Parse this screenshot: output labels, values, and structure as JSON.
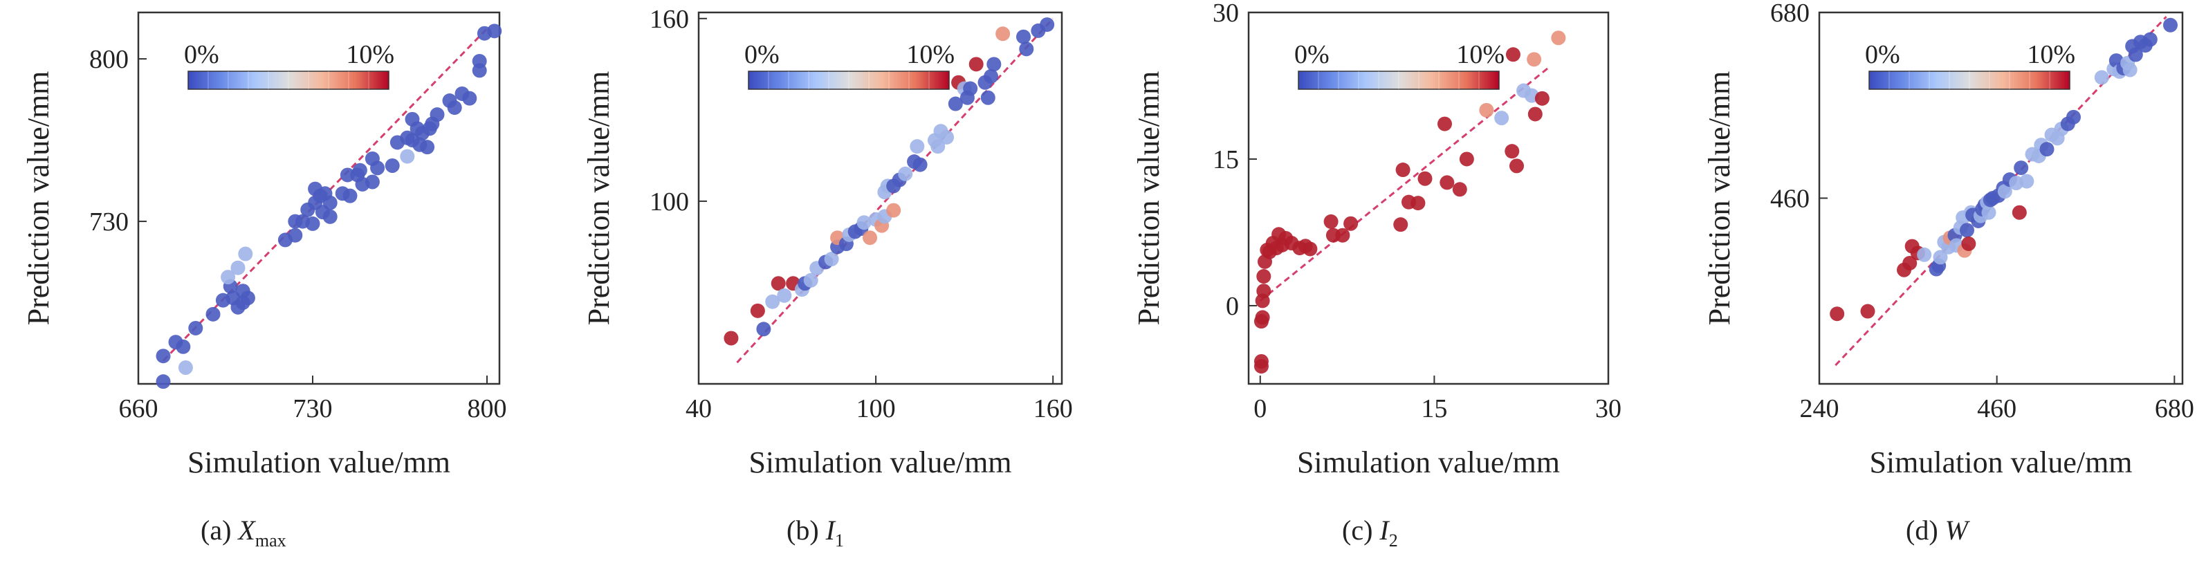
{
  "figure": {
    "colorbar": {
      "min_label": "0%",
      "max_label": "10%",
      "colors": [
        "#3b4cc0",
        "#6a8be8",
        "#aac7fb",
        "#dddddd",
        "#f4b99e",
        "#e8765e",
        "#b40426"
      ]
    },
    "marker_colors": {
      "blue": "#4a5bbf",
      "light": "#9fb4e8",
      "pink": "#e8917b",
      "red": "#b21e2c"
    },
    "reference_line_color": "#d63f6d"
  },
  "chart_data": [
    {
      "type": "scatter",
      "caption": {
        "prefix": "(a) ",
        "symbol": "X",
        "subscript": "max",
        "suffix": ""
      },
      "xlabel": "Simulation value/mm",
      "ylabel": "Prediction value/mm",
      "xlim": [
        660,
        805
      ],
      "ylim": [
        660,
        820
      ],
      "xticks": [
        660,
        730,
        800
      ],
      "yticks": [
        730,
        800
      ],
      "xtick_labels": [
        "660",
        "730",
        "800"
      ],
      "ytick_labels": [
        "730",
        "800"
      ],
      "legend": "colorbar top-left",
      "reference_line": [
        [
          670,
          670
        ],
        [
          800,
          813
        ]
      ],
      "points": [
        [
          670,
          672,
          "blue"
        ],
        [
          670,
          661,
          "blue"
        ],
        [
          675,
          678,
          "blue"
        ],
        [
          678,
          676,
          "blue"
        ],
        [
          679,
          667,
          "light"
        ],
        [
          683,
          684,
          "blue"
        ],
        [
          690,
          690,
          "blue"
        ],
        [
          694,
          696,
          "blue"
        ],
        [
          697,
          702,
          "blue"
        ],
        [
          696,
          706,
          "light"
        ],
        [
          698,
          697,
          "blue"
        ],
        [
          700,
          710,
          "light"
        ],
        [
          700,
          693,
          "blue"
        ],
        [
          702,
          695,
          "blue"
        ],
        [
          702,
          700,
          "blue"
        ],
        [
          704,
          697,
          "blue"
        ],
        [
          703,
          716,
          "light"
        ],
        [
          719,
          722,
          "blue"
        ],
        [
          723,
          730,
          "blue"
        ],
        [
          723,
          724,
          "blue"
        ],
        [
          726,
          730,
          "blue"
        ],
        [
          728,
          735,
          "blue"
        ],
        [
          730,
          729,
          "blue"
        ],
        [
          731,
          744,
          "blue"
        ],
        [
          731,
          738,
          "blue"
        ],
        [
          733,
          741,
          "blue"
        ],
        [
          734,
          734,
          "blue"
        ],
        [
          735,
          742,
          "blue"
        ],
        [
          737,
          738,
          "blue"
        ],
        [
          737,
          732,
          "blue"
        ],
        [
          742,
          742,
          "blue"
        ],
        [
          744,
          750,
          "blue"
        ],
        [
          745,
          741,
          "blue"
        ],
        [
          748,
          750,
          "blue"
        ],
        [
          749,
          752,
          "blue"
        ],
        [
          750,
          746,
          "blue"
        ],
        [
          754,
          757,
          "blue"
        ],
        [
          754,
          747,
          "blue"
        ],
        [
          756,
          753,
          "blue"
        ],
        [
          762,
          754,
          "blue"
        ],
        [
          764,
          764,
          "blue"
        ],
        [
          768,
          766,
          "blue"
        ],
        [
          768,
          758,
          "light"
        ],
        [
          770,
          765,
          "blue"
        ],
        [
          770,
          774,
          "blue"
        ],
        [
          772,
          770,
          "blue"
        ],
        [
          773,
          763,
          "blue"
        ],
        [
          774,
          768,
          "blue"
        ],
        [
          776,
          762,
          "blue"
        ],
        [
          777,
          770,
          "blue"
        ],
        [
          778,
          772,
          "blue"
        ],
        [
          780,
          776,
          "blue"
        ],
        [
          785,
          782,
          "blue"
        ],
        [
          787,
          779,
          "blue"
        ],
        [
          790,
          785,
          "blue"
        ],
        [
          793,
          783,
          "blue"
        ],
        [
          797,
          799,
          "blue"
        ],
        [
          797,
          795,
          "blue"
        ],
        [
          799,
          811,
          "blue"
        ],
        [
          803,
          812,
          "blue"
        ]
      ]
    },
    {
      "type": "scatter",
      "caption": {
        "prefix": "(b) ",
        "symbol": "I",
        "subscript": "1",
        "suffix": ""
      },
      "xlabel": "Simulation value/mm",
      "ylabel": "Prediction value/mm",
      "xlim": [
        40,
        163
      ],
      "ylim": [
        40,
        162
      ],
      "xticks": [
        40,
        100,
        160
      ],
      "yticks": [
        100,
        160
      ],
      "xtick_labels": [
        "40",
        "100",
        "160"
      ],
      "ytick_labels": [
        "100",
        "160"
      ],
      "legend": "colorbar top-left",
      "reference_line": [
        [
          53,
          47
        ],
        [
          160,
          160
        ]
      ],
      "points": [
        [
          51,
          55,
          "red"
        ],
        [
          60,
          64,
          "red"
        ],
        [
          62,
          58,
          "blue"
        ],
        [
          65,
          67,
          "light"
        ],
        [
          67,
          73,
          "red"
        ],
        [
          69,
          69,
          "light"
        ],
        [
          72,
          73,
          "red"
        ],
        [
          75,
          71,
          "light"
        ],
        [
          76,
          73,
          "blue"
        ],
        [
          78,
          74,
          "light"
        ],
        [
          80,
          78,
          "light"
        ],
        [
          83,
          80,
          "blue"
        ],
        [
          85,
          81,
          "light"
        ],
        [
          87,
          85,
          "blue"
        ],
        [
          87,
          88,
          "pink"
        ],
        [
          90,
          86,
          "blue"
        ],
        [
          91,
          89,
          "light"
        ],
        [
          93,
          90,
          "blue"
        ],
        [
          95,
          91,
          "blue"
        ],
        [
          96,
          93,
          "light"
        ],
        [
          98,
          88,
          "pink"
        ],
        [
          100,
          94,
          "light"
        ],
        [
          102,
          92,
          "pink"
        ],
        [
          103,
          95,
          "light"
        ],
        [
          103,
          103,
          "light"
        ],
        [
          104,
          105,
          "light"
        ],
        [
          106,
          97,
          "pink"
        ],
        [
          106,
          105,
          "blue"
        ],
        [
          108,
          107,
          "blue"
        ],
        [
          110,
          109,
          "light"
        ],
        [
          113,
          113,
          "blue"
        ],
        [
          114,
          118,
          "light"
        ],
        [
          115,
          112,
          "blue"
        ],
        [
          120,
          120,
          "light"
        ],
        [
          121,
          118,
          "light"
        ],
        [
          122,
          123,
          "light"
        ],
        [
          124,
          121,
          "light"
        ],
        [
          127,
          132,
          "blue"
        ],
        [
          128,
          139,
          "red"
        ],
        [
          130,
          137,
          "light"
        ],
        [
          131,
          134,
          "blue"
        ],
        [
          132,
          137,
          "blue"
        ],
        [
          134,
          145,
          "red"
        ],
        [
          137,
          139,
          "blue"
        ],
        [
          138,
          134,
          "blue"
        ],
        [
          139,
          141,
          "blue"
        ],
        [
          140,
          145,
          "blue"
        ],
        [
          143,
          155,
          "pink"
        ],
        [
          150,
          154,
          "blue"
        ],
        [
          151,
          150,
          "blue"
        ],
        [
          155,
          156,
          "blue"
        ],
        [
          158,
          158,
          "blue"
        ]
      ]
    },
    {
      "type": "scatter",
      "caption": {
        "prefix": "(c) ",
        "symbol": "I",
        "subscript": "2",
        "suffix": ""
      },
      "xlabel": "Simulation value/mm",
      "ylabel": "Prediction value/mm",
      "xlim": [
        -1,
        30
      ],
      "ylim": [
        -8,
        30
      ],
      "xticks": [
        0,
        15,
        30
      ],
      "yticks": [
        0,
        15,
        30
      ],
      "xtick_labels": [
        "0",
        "15",
        "30"
      ],
      "ytick_labels": [
        "0",
        "15",
        "30"
      ],
      "legend": "colorbar top-left",
      "reference_line": [
        [
          0,
          0.5
        ],
        [
          25,
          24.5
        ]
      ],
      "points": [
        [
          0.1,
          -6.2,
          "red"
        ],
        [
          0.1,
          -5.7,
          "red"
        ],
        [
          0.1,
          -1.6,
          "red"
        ],
        [
          0.2,
          -1.2,
          "red"
        ],
        [
          0.2,
          0.5,
          "red"
        ],
        [
          0.3,
          1.5,
          "red"
        ],
        [
          0.3,
          3,
          "red"
        ],
        [
          0.4,
          4.5,
          "red"
        ],
        [
          0.6,
          5.7,
          "red"
        ],
        [
          0.8,
          5.5,
          "red"
        ],
        [
          1.1,
          6.4,
          "red"
        ],
        [
          1.4,
          5.9,
          "red"
        ],
        [
          1.6,
          7.3,
          "red"
        ],
        [
          1.9,
          6.2,
          "red"
        ],
        [
          2.2,
          6.9,
          "red"
        ],
        [
          2.7,
          6.4,
          "red"
        ],
        [
          3.4,
          5.9,
          "red"
        ],
        [
          3.9,
          6.1,
          "red"
        ],
        [
          4.3,
          5.8,
          "red"
        ],
        [
          6.1,
          8.6,
          "red"
        ],
        [
          6.3,
          7.2,
          "red"
        ],
        [
          7.1,
          7.2,
          "red"
        ],
        [
          7.8,
          8.4,
          "red"
        ],
        [
          12.1,
          8.3,
          "red"
        ],
        [
          12.3,
          13.9,
          "red"
        ],
        [
          12.8,
          10.6,
          "red"
        ],
        [
          13.6,
          10.5,
          "red"
        ],
        [
          14.2,
          13,
          "red"
        ],
        [
          15.9,
          18.6,
          "red"
        ],
        [
          16.1,
          12.6,
          "red"
        ],
        [
          17.2,
          11.9,
          "red"
        ],
        [
          17.8,
          15,
          "red"
        ],
        [
          19.5,
          20,
          "pink"
        ],
        [
          20.8,
          19.2,
          "light"
        ],
        [
          21.7,
          15.8,
          "red"
        ],
        [
          22.1,
          14.3,
          "red"
        ],
        [
          21.8,
          25.7,
          "red"
        ],
        [
          22.7,
          22,
          "light"
        ],
        [
          23.4,
          21.5,
          "light"
        ],
        [
          23.6,
          25.2,
          "pink"
        ],
        [
          23.7,
          19.6,
          "red"
        ],
        [
          24.3,
          21.2,
          "red"
        ],
        [
          25.7,
          27.4,
          "pink"
        ]
      ]
    },
    {
      "type": "scatter",
      "caption": {
        "prefix": "(d) ",
        "symbol": "W",
        "subscript": "",
        "suffix": ""
      },
      "xlabel": "Simulation value/mm",
      "ylabel": "Prediction value/mm",
      "xlim": [
        240,
        690
      ],
      "ylim": [
        240,
        680
      ],
      "xticks": [
        240,
        460,
        680
      ],
      "yticks": [
        460,
        680
      ],
      "xtick_labels": [
        "240",
        "460",
        "680"
      ],
      "ytick_labels": [
        "460",
        "680"
      ],
      "legend": "colorbar top-left",
      "reference_line": [
        [
          260,
          262
        ],
        [
          670,
          675
        ]
      ],
      "points": [
        [
          262,
          323,
          "red"
        ],
        [
          300,
          326,
          "red"
        ],
        [
          345,
          375,
          "red"
        ],
        [
          352,
          383,
          "red"
        ],
        [
          355,
          403,
          "red"
        ],
        [
          362,
          395,
          "red"
        ],
        [
          370,
          393,
          "light"
        ],
        [
          385,
          376,
          "blue"
        ],
        [
          388,
          380,
          "blue"
        ],
        [
          390,
          390,
          "light"
        ],
        [
          395,
          408,
          "light"
        ],
        [
          400,
          402,
          "light"
        ],
        [
          402,
          413,
          "pink"
        ],
        [
          408,
          416,
          "blue"
        ],
        [
          410,
          404,
          "light"
        ],
        [
          415,
          425,
          "light"
        ],
        [
          418,
          437,
          "light"
        ],
        [
          420,
          398,
          "pink"
        ],
        [
          423,
          422,
          "blue"
        ],
        [
          425,
          406,
          "red"
        ],
        [
          428,
          443,
          "light"
        ],
        [
          430,
          440,
          "blue"
        ],
        [
          437,
          433,
          "blue"
        ],
        [
          440,
          439,
          "light"
        ],
        [
          442,
          447,
          "blue"
        ],
        [
          445,
          452,
          "blue"
        ],
        [
          448,
          455,
          "light"
        ],
        [
          450,
          443,
          "light"
        ],
        [
          452,
          458,
          "blue"
        ],
        [
          455,
          460,
          "blue"
        ],
        [
          462,
          463,
          "blue"
        ],
        [
          468,
          472,
          "blue"
        ],
        [
          470,
          468,
          "light"
        ],
        [
          476,
          482,
          "blue"
        ],
        [
          484,
          478,
          "light"
        ],
        [
          488,
          443,
          "red"
        ],
        [
          490,
          496,
          "blue"
        ],
        [
          497,
          480,
          "light"
        ],
        [
          504,
          512,
          "light"
        ],
        [
          512,
          510,
          "light"
        ],
        [
          515,
          523,
          "light"
        ],
        [
          522,
          518,
          "blue"
        ],
        [
          528,
          535,
          "light"
        ],
        [
          535,
          531,
          "light"
        ],
        [
          540,
          542,
          "light"
        ],
        [
          548,
          548,
          "blue"
        ],
        [
          555,
          556,
          "blue"
        ],
        [
          590,
          603,
          "light"
        ],
        [
          605,
          613,
          "light"
        ],
        [
          608,
          623,
          "blue"
        ],
        [
          612,
          610,
          "light"
        ],
        [
          617,
          614,
          "blue"
        ],
        [
          622,
          620,
          "light"
        ],
        [
          625,
          612,
          "light"
        ],
        [
          628,
          640,
          "blue"
        ],
        [
          632,
          630,
          "blue"
        ],
        [
          638,
          645,
          "blue"
        ],
        [
          644,
          641,
          "blue"
        ],
        [
          650,
          648,
          "blue"
        ],
        [
          675,
          665,
          "blue"
        ]
      ]
    }
  ]
}
